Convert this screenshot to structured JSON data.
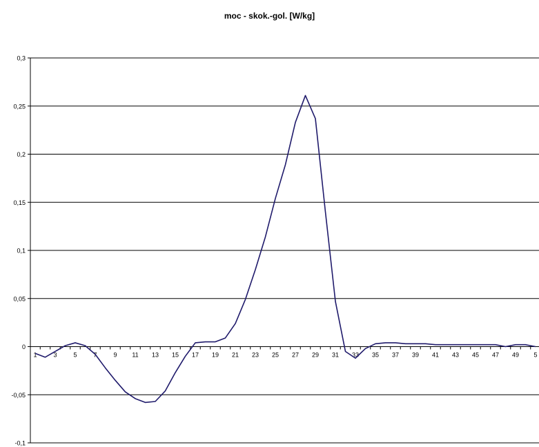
{
  "chart_data": {
    "type": "line",
    "title": "moc - skok.-gol. [W/kg]",
    "xlabel": "",
    "ylabel": "",
    "ylim": [
      -0.1,
      0.3
    ],
    "xlim": [
      1,
      51
    ],
    "y_ticks": [
      "-0,1",
      "-0,05",
      "0",
      "0,05",
      "0,1",
      "0,15",
      "0,2",
      "0,25",
      "0,3"
    ],
    "x_tick_labels": [
      "1",
      "3",
      "5",
      "7",
      "9",
      "11",
      "13",
      "15",
      "17",
      "19",
      "21",
      "23",
      "25",
      "27",
      "29",
      "31",
      "33",
      "35",
      "37",
      "39",
      "41",
      "43",
      "45",
      "47",
      "49",
      "5"
    ],
    "grid": true,
    "legend": "none",
    "line_color": "#1f1a6b",
    "series": [
      {
        "x": [
          1,
          2,
          3,
          4,
          5,
          6,
          7,
          8,
          9,
          10,
          11,
          12,
          13,
          14,
          15,
          16,
          17,
          18,
          19,
          20,
          21,
          22,
          23,
          24,
          25,
          26,
          27,
          28,
          29,
          30,
          31,
          32,
          33,
          34,
          35,
          36,
          37,
          38,
          39,
          40,
          41,
          42,
          43,
          44,
          45,
          46,
          47,
          48,
          49,
          50,
          51
        ],
        "values": [
          -0.007,
          -0.011,
          -0.005,
          0.001,
          0.004,
          0.001,
          -0.008,
          -0.022,
          -0.035,
          -0.047,
          -0.054,
          -0.058,
          -0.057,
          -0.046,
          -0.027,
          -0.01,
          0.004,
          0.005,
          0.005,
          0.009,
          0.024,
          0.049,
          0.08,
          0.114,
          0.154,
          0.189,
          0.233,
          0.261,
          0.237,
          0.14,
          0.047,
          -0.005,
          -0.012,
          -0.002,
          0.003,
          0.004,
          0.004,
          0.003,
          0.003,
          0.003,
          0.002,
          0.002,
          0.002,
          0.002,
          0.002,
          0.002,
          0.002,
          0.0,
          0.002,
          0.002,
          0.0
        ]
      }
    ]
  }
}
